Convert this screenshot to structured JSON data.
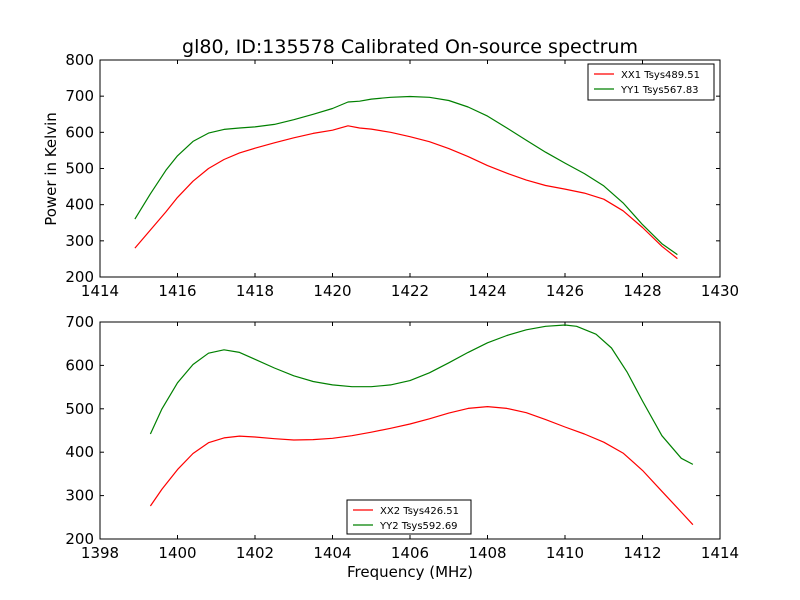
{
  "title": "gl80, ID:135578 Calibrated On-source spectrum",
  "ylabel": "Power in Kelvin",
  "xlabel": "Frequency (MHz)",
  "chart_data": [
    {
      "type": "line",
      "title": "gl80, ID:135578 Calibrated On-source spectrum",
      "ylabel": "Power in Kelvin",
      "xlabel": "",
      "xlim": [
        1414,
        1430
      ],
      "ylim": [
        200,
        800
      ],
      "xticks": [
        "1414",
        "1416",
        "1418",
        "1420",
        "1422",
        "1424",
        "1426",
        "1428",
        "1430"
      ],
      "yticks": [
        "200",
        "300",
        "400",
        "500",
        "600",
        "700",
        "800"
      ],
      "legend": "top-right",
      "grid": false,
      "series": [
        {
          "name": "XX1 Tsys489.51",
          "color": "#ff0000",
          "x": [
            1414.9,
            1415.3,
            1415.7,
            1416.0,
            1416.4,
            1416.8,
            1417.2,
            1417.6,
            1418.0,
            1418.5,
            1419.0,
            1419.5,
            1420.0,
            1420.4,
            1420.7,
            1421.0,
            1421.5,
            1422.0,
            1422.5,
            1423.0,
            1423.5,
            1424.0,
            1424.5,
            1425.0,
            1425.5,
            1426.0,
            1426.5,
            1427.0,
            1427.5,
            1428.0,
            1428.5,
            1428.9
          ],
          "y": [
            280,
            330,
            380,
            420,
            465,
            500,
            525,
            543,
            556,
            571,
            585,
            597,
            606,
            618,
            612,
            609,
            600,
            588,
            574,
            555,
            533,
            508,
            487,
            468,
            453,
            443,
            432,
            415,
            383,
            337,
            285,
            251
          ]
        },
        {
          "name": "YY1 Tsys567.83",
          "color": "#008000",
          "x": [
            1414.9,
            1415.3,
            1415.7,
            1416.0,
            1416.4,
            1416.8,
            1417.2,
            1417.6,
            1418.0,
            1418.5,
            1419.0,
            1419.5,
            1420.0,
            1420.4,
            1420.7,
            1421.0,
            1421.5,
            1422.0,
            1422.5,
            1423.0,
            1423.5,
            1424.0,
            1424.5,
            1425.0,
            1425.5,
            1426.0,
            1426.5,
            1427.0,
            1427.5,
            1428.0,
            1428.5,
            1428.9
          ],
          "y": [
            360,
            430,
            495,
            535,
            575,
            598,
            608,
            612,
            615,
            622,
            635,
            650,
            666,
            684,
            686,
            692,
            697,
            699,
            697,
            688,
            670,
            645,
            612,
            578,
            545,
            515,
            486,
            452,
            405,
            345,
            292,
            262
          ]
        }
      ]
    },
    {
      "type": "line",
      "title": "",
      "ylabel": "",
      "xlabel": "Frequency (MHz)",
      "xlim": [
        1398,
        1414
      ],
      "ylim": [
        200,
        700
      ],
      "xticks": [
        "1398",
        "1400",
        "1402",
        "1404",
        "1406",
        "1408",
        "1410",
        "1412",
        "1414"
      ],
      "yticks": [
        "200",
        "300",
        "400",
        "500",
        "600",
        "700"
      ],
      "legend": "bottom-center",
      "grid": false,
      "series": [
        {
          "name": "XX2 Tsys426.51",
          "color": "#ff0000",
          "x": [
            1399.3,
            1399.6,
            1400.0,
            1400.4,
            1400.8,
            1401.2,
            1401.6,
            1402.0,
            1402.5,
            1403.0,
            1403.5,
            1404.0,
            1404.5,
            1405.0,
            1405.5,
            1406.0,
            1406.5,
            1407.0,
            1407.5,
            1408.0,
            1408.5,
            1409.0,
            1409.5,
            1410.0,
            1410.5,
            1411.0,
            1411.5,
            1412.0,
            1412.5,
            1413.0,
            1413.3
          ],
          "y": [
            276,
            315,
            360,
            397,
            422,
            433,
            437,
            435,
            431,
            428,
            429,
            432,
            438,
            446,
            455,
            465,
            477,
            490,
            501,
            505,
            501,
            491,
            475,
            458,
            442,
            423,
            398,
            358,
            310,
            262,
            233
          ]
        },
        {
          "name": "YY2 Tsys592.69",
          "color": "#008000",
          "x": [
            1399.3,
            1399.6,
            1400.0,
            1400.4,
            1400.8,
            1401.2,
            1401.6,
            1402.0,
            1402.5,
            1403.0,
            1403.5,
            1404.0,
            1404.5,
            1405.0,
            1405.5,
            1406.0,
            1406.5,
            1407.0,
            1407.5,
            1408.0,
            1408.5,
            1409.0,
            1409.5,
            1410.0,
            1410.3,
            1410.8,
            1411.2,
            1411.6,
            1412.0,
            1412.5,
            1413.0,
            1413.3
          ],
          "y": [
            442,
            500,
            560,
            602,
            628,
            636,
            630,
            614,
            594,
            576,
            563,
            555,
            551,
            551,
            555,
            565,
            583,
            606,
            630,
            652,
            669,
            682,
            690,
            693,
            690,
            672,
            640,
            585,
            518,
            438,
            386,
            372
          ]
        }
      ]
    }
  ]
}
